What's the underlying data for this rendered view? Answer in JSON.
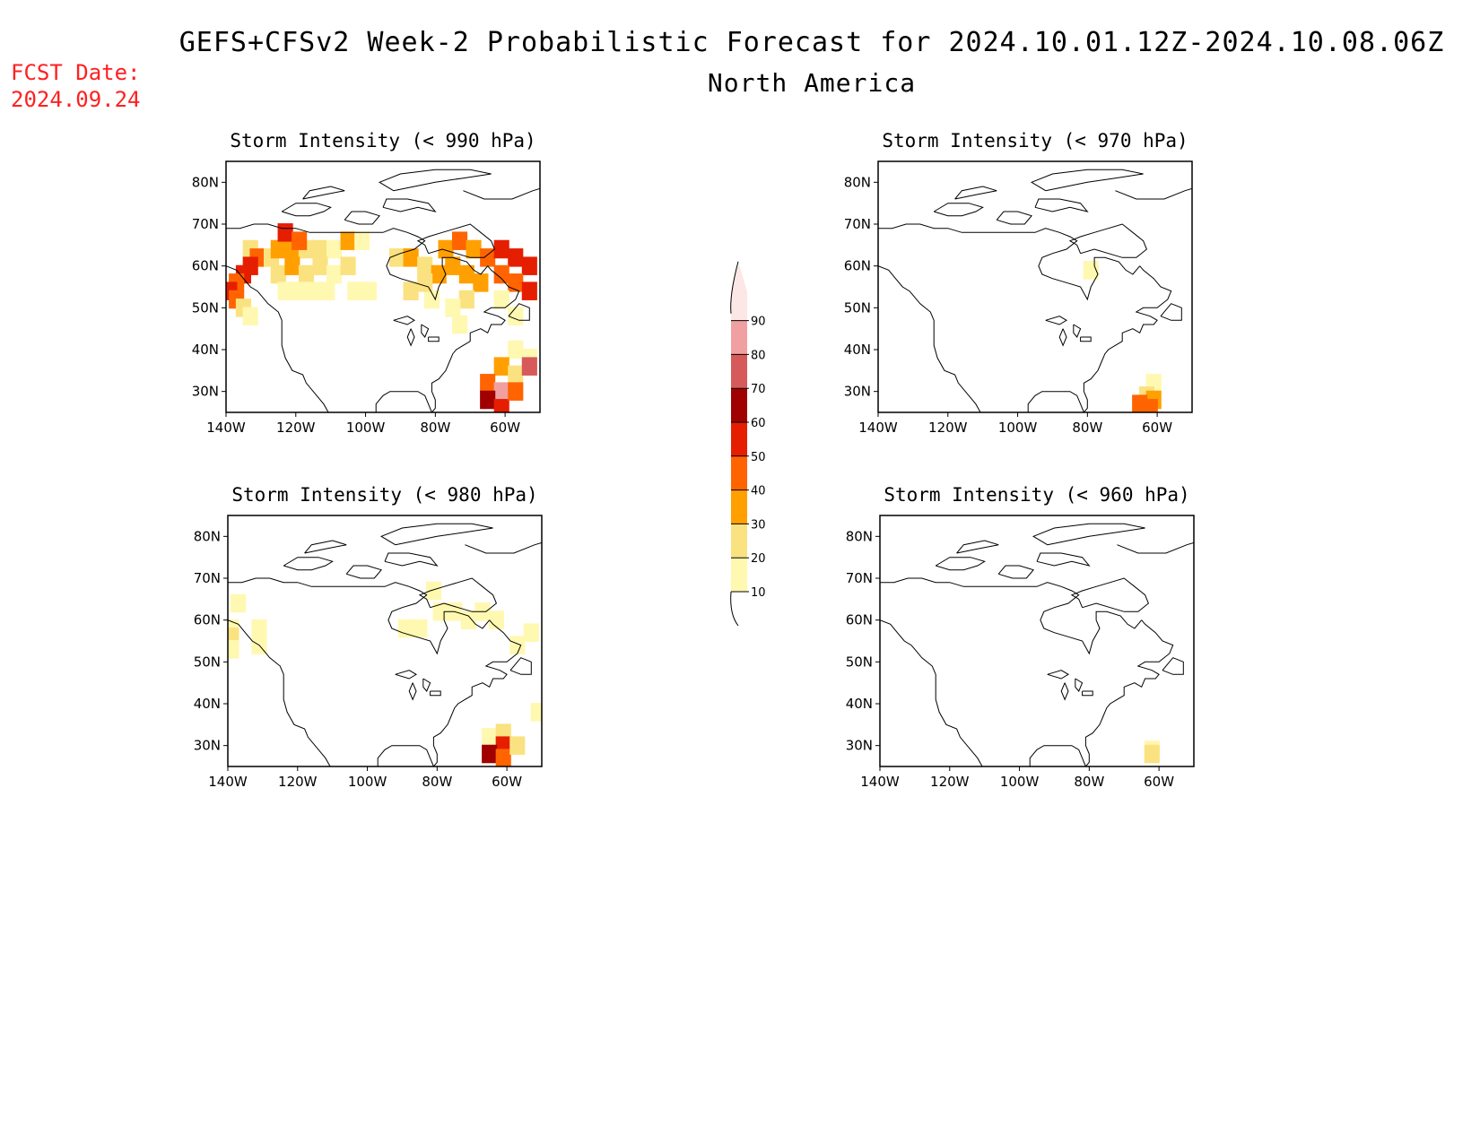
{
  "header": {
    "title": "GEFS+CFSv2 Week-2 Probabilistic Forecast for 2024.10.01.12Z-2024.10.08.06Z",
    "region": "North America",
    "fcst_label": "FCST Date:",
    "fcst_date": "2024.09.24"
  },
  "axes": {
    "lat_labels": [
      "80N",
      "70N",
      "60N",
      "50N",
      "40N",
      "30N"
    ],
    "lat_values": [
      80,
      70,
      60,
      50,
      40,
      30
    ],
    "lon_labels": [
      "140W",
      "120W",
      "100W",
      "80W",
      "60W"
    ],
    "lon_values": [
      -140,
      -120,
      -100,
      -80,
      -60
    ],
    "lon_range": [
      -140,
      -50
    ],
    "lat_range": [
      25,
      85
    ]
  },
  "colorbar": {
    "levels": [
      "10",
      "20",
      "30",
      "40",
      "50",
      "60",
      "70",
      "80",
      "90"
    ],
    "colors": [
      "#fff8b0",
      "#fbe280",
      "#ffa000",
      "#ff6400",
      "#e61e00",
      "#a00000",
      "#d75a5a",
      "#f0a0a0",
      "#fde6e6"
    ]
  },
  "panels": [
    {
      "id": "p990",
      "title": "Storm Intensity (< 990 hPa)",
      "cells": [
        [
          -133,
          64,
          2
        ],
        [
          -131,
          62,
          4
        ],
        [
          -133,
          60,
          5
        ],
        [
          -135,
          58,
          5
        ],
        [
          -137,
          56,
          4
        ],
        [
          -139,
          54,
          5
        ],
        [
          -137,
          52,
          4
        ],
        [
          -135,
          50,
          2
        ],
        [
          -133,
          48,
          1
        ],
        [
          -127,
          62,
          2
        ],
        [
          -125,
          64,
          3
        ],
        [
          -121,
          64,
          3
        ],
        [
          -117,
          64,
          2
        ],
        [
          -113,
          64,
          2
        ],
        [
          -109,
          64,
          1
        ],
        [
          -105,
          66,
          3
        ],
        [
          -101,
          66,
          1
        ],
        [
          -123,
          68,
          5
        ],
        [
          -119,
          66,
          4
        ],
        [
          -125,
          58,
          2
        ],
        [
          -121,
          60,
          3
        ],
        [
          -117,
          58,
          2
        ],
        [
          -113,
          60,
          2
        ],
        [
          -109,
          58,
          1
        ],
        [
          -105,
          60,
          2
        ],
        [
          -123,
          54,
          1
        ],
        [
          -119,
          54,
          1
        ],
        [
          -115,
          54,
          1
        ],
        [
          -111,
          54,
          1
        ],
        [
          -103,
          54,
          1
        ],
        [
          -99,
          54,
          1
        ],
        [
          -91,
          62,
          2
        ],
        [
          -87,
          62,
          3
        ],
        [
          -83,
          60,
          2
        ],
        [
          -79,
          58,
          3
        ],
        [
          -75,
          60,
          3
        ],
        [
          -71,
          58,
          3
        ],
        [
          -77,
          64,
          3
        ],
        [
          -73,
          66,
          4
        ],
        [
          -69,
          64,
          3
        ],
        [
          -65,
          62,
          4
        ],
        [
          -61,
          64,
          5
        ],
        [
          -57,
          62,
          5
        ],
        [
          -53,
          60,
          5
        ],
        [
          -57,
          56,
          4
        ],
        [
          -53,
          54,
          5
        ],
        [
          -61,
          58,
          4
        ],
        [
          -67,
          56,
          3
        ],
        [
          -71,
          52,
          2
        ],
        [
          -75,
          50,
          1
        ],
        [
          -81,
          52,
          1
        ],
        [
          -87,
          54,
          2
        ],
        [
          -83,
          56,
          2
        ],
        [
          -61,
          52,
          1
        ],
        [
          -57,
          48,
          1
        ],
        [
          -73,
          46,
          1
        ],
        [
          -57,
          40,
          1
        ],
        [
          -53,
          38,
          1
        ],
        [
          -61,
          36,
          3
        ],
        [
          -57,
          34,
          2
        ],
        [
          -53,
          36,
          7
        ],
        [
          -65,
          32,
          4
        ],
        [
          -61,
          30,
          8
        ],
        [
          -65,
          28,
          6
        ],
        [
          -61,
          26,
          5
        ],
        [
          -57,
          30,
          4
        ]
      ]
    },
    {
      "id": "p970",
      "title": "Storm Intensity (< 970 hPa)",
      "cells": [
        [
          -61,
          32,
          1
        ],
        [
          -63,
          29,
          2
        ],
        [
          -61,
          28,
          3
        ],
        [
          -65,
          27,
          4
        ],
        [
          -62,
          26,
          4
        ],
        [
          -79,
          59,
          1
        ]
      ]
    },
    {
      "id": "p980",
      "title": "Storm Intensity (< 980 hPa)",
      "cells": [
        [
          -137,
          64,
          1
        ],
        [
          -139,
          58,
          1
        ],
        [
          -139,
          56,
          2
        ],
        [
          -139,
          53,
          1
        ],
        [
          -131,
          58,
          1
        ],
        [
          -131,
          54,
          1
        ],
        [
          -89,
          58,
          1
        ],
        [
          -85,
          58,
          1
        ],
        [
          -79,
          62,
          1
        ],
        [
          -75,
          62,
          1
        ],
        [
          -71,
          60,
          1
        ],
        [
          -67,
          62,
          1
        ],
        [
          -63,
          60,
          1
        ],
        [
          -81,
          67,
          1
        ],
        [
          -53,
          57,
          1
        ],
        [
          -57,
          54,
          1
        ],
        [
          -51,
          38,
          1
        ],
        [
          -65,
          32,
          1
        ],
        [
          -61,
          33,
          2
        ],
        [
          -61,
          30,
          5
        ],
        [
          -65,
          28,
          6
        ],
        [
          -61,
          27,
          4
        ],
        [
          -57,
          30,
          2
        ]
      ]
    },
    {
      "id": "p960",
      "title": "Storm Intensity (< 960 hPa)",
      "cells": [
        [
          -62,
          29,
          1
        ],
        [
          -62,
          28,
          2
        ]
      ]
    }
  ]
}
